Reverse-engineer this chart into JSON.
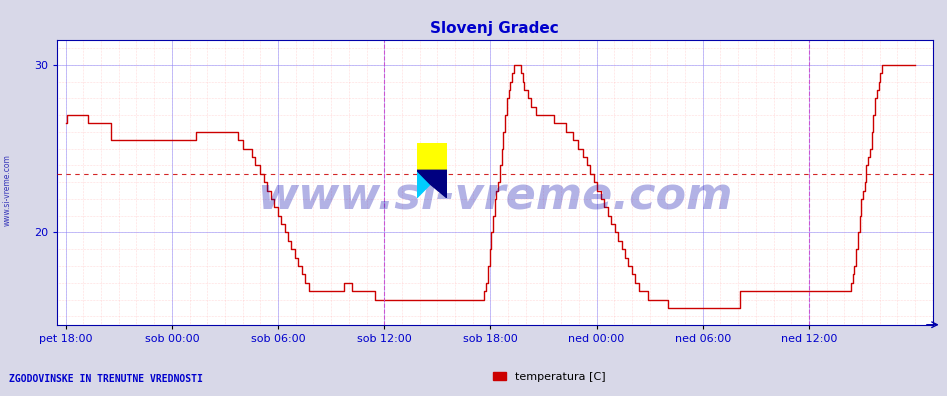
{
  "title": "Slovenj Gradec",
  "title_color": "#0000cc",
  "title_fontsize": 11,
  "ylim": [
    14.5,
    31.5
  ],
  "yticks": [
    20,
    30
  ],
  "background_color": "#d8d8e8",
  "plot_bg_color": "#ffffff",
  "line_color": "#cc0000",
  "line_width": 1.0,
  "grid_color_major": "#8888ff",
  "grid_color_minor": "#ffaaaa",
  "hline_y": 23.5,
  "hline_color": "#cc0000",
  "vline_color": "#cc44cc",
  "xtick_labels": [
    "pet 18:00",
    "sob 00:00",
    "sob 06:00",
    "sob 12:00",
    "sob 18:00",
    "ned 00:00",
    "ned 06:00",
    "ned 12:00"
  ],
  "xtick_color": "#0000cc",
  "ytick_color": "#0000cc",
  "watermark_text": "www.si-vreme.com",
  "watermark_color": "#0000aa",
  "watermark_alpha": 0.3,
  "watermark_fontsize": 32,
  "sidebar_text": "www.si-vreme.com",
  "sidebar_color": "#0000aa",
  "legend_label": "temperatura [C]",
  "legend_color": "#cc0000",
  "footer_text": "ZGODOVINSKE IN TRENUTNE VREDNOSTI",
  "footer_color": "#0000cc",
  "temperature_data": [
    26.5,
    27.0,
    27.0,
    27.0,
    27.0,
    27.0,
    27.0,
    27.0,
    27.0,
    27.0,
    27.0,
    27.0,
    27.0,
    26.5,
    26.5,
    26.5,
    26.5,
    26.5,
    26.5,
    26.5,
    26.5,
    26.5,
    26.5,
    26.5,
    26.5,
    26.5,
    25.5,
    25.5,
    25.5,
    25.5,
    25.5,
    25.5,
    25.5,
    25.5,
    25.5,
    25.5,
    25.5,
    25.5,
    25.5,
    25.5,
    25.5,
    25.5,
    25.5,
    25.5,
    25.5,
    25.5,
    25.5,
    25.5,
    25.5,
    25.5,
    25.5,
    25.5,
    25.5,
    25.5,
    25.5,
    25.5,
    25.5,
    25.5,
    25.5,
    25.5,
    25.5,
    25.5,
    25.5,
    25.5,
    25.5,
    25.5,
    25.5,
    25.5,
    25.5,
    25.5,
    25.5,
    25.5,
    25.5,
    25.5,
    25.5,
    26.0,
    26.0,
    26.0,
    26.0,
    26.0,
    26.0,
    26.0,
    26.0,
    26.0,
    26.0,
    26.0,
    26.0,
    26.0,
    26.0,
    26.0,
    26.0,
    26.0,
    26.0,
    26.0,
    26.0,
    26.0,
    26.0,
    26.0,
    26.0,
    25.5,
    25.5,
    25.5,
    25.0,
    25.0,
    25.0,
    25.0,
    25.0,
    24.5,
    24.5,
    24.0,
    24.0,
    24.0,
    23.5,
    23.5,
    23.0,
    23.0,
    22.5,
    22.5,
    22.0,
    22.0,
    21.5,
    21.5,
    21.0,
    21.0,
    20.5,
    20.5,
    20.0,
    20.0,
    19.5,
    19.5,
    19.0,
    19.0,
    18.5,
    18.5,
    18.0,
    18.0,
    17.5,
    17.5,
    17.0,
    17.0,
    16.5,
    16.5,
    16.5,
    16.5,
    16.5,
    16.5,
    16.5,
    16.5,
    16.5,
    16.5,
    16.5,
    16.5,
    16.5,
    16.5,
    16.5,
    16.5,
    16.5,
    16.5,
    16.5,
    16.5,
    17.0,
    17.0,
    17.0,
    17.0,
    17.0,
    16.5,
    16.5,
    16.5,
    16.5,
    16.5,
    16.5,
    16.5,
    16.5,
    16.5,
    16.5,
    16.5,
    16.5,
    16.5,
    16.0,
    16.0,
    16.0,
    16.0,
    16.0,
    16.0,
    16.0,
    16.0,
    16.0,
    16.0,
    16.0,
    16.0,
    16.0,
    16.0,
    16.0,
    16.0,
    16.0,
    16.0,
    16.0,
    16.0,
    16.0,
    16.0,
    16.0,
    16.0,
    16.0,
    16.0,
    16.0,
    16.0,
    16.0,
    16.0,
    16.0,
    16.0,
    16.0,
    16.0,
    16.0,
    16.0,
    16.0,
    16.0,
    16.0,
    16.0,
    16.0,
    16.0,
    16.0,
    16.0,
    16.0,
    16.0,
    16.0,
    16.0,
    16.0,
    16.0,
    16.0,
    16.0,
    16.0,
    16.0,
    16.0,
    16.0,
    16.0,
    16.0,
    16.0,
    16.0,
    16.0,
    16.0,
    16.0,
    16.5,
    17.0,
    18.0,
    19.0,
    20.0,
    21.0,
    22.0,
    22.5,
    23.0,
    24.0,
    25.0,
    26.0,
    27.0,
    28.0,
    28.5,
    29.0,
    29.5,
    30.0,
    30.0,
    30.0,
    30.0,
    29.5,
    29.0,
    28.5,
    28.5,
    28.0,
    28.0,
    27.5,
    27.5,
    27.5,
    27.0,
    27.0,
    27.0,
    27.0,
    27.0,
    27.0,
    27.0,
    27.0,
    27.0,
    27.0,
    26.5,
    26.5,
    26.5,
    26.5,
    26.5,
    26.5,
    26.5,
    26.0,
    26.0,
    26.0,
    26.0,
    25.5,
    25.5,
    25.5,
    25.0,
    25.0,
    25.0,
    24.5,
    24.5,
    24.0,
    24.0,
    23.5,
    23.5,
    23.0,
    23.0,
    22.5,
    22.5,
    22.0,
    22.0,
    21.5,
    21.5,
    21.0,
    21.0,
    20.5,
    20.5,
    20.0,
    20.0,
    19.5,
    19.5,
    19.0,
    19.0,
    18.5,
    18.5,
    18.0,
    18.0,
    17.5,
    17.5,
    17.0,
    17.0,
    16.5,
    16.5,
    16.5,
    16.5,
    16.5,
    16.0,
    16.0,
    16.0,
    16.0,
    16.0,
    16.0,
    16.0,
    16.0,
    16.0,
    16.0,
    16.0,
    16.0,
    15.5,
    15.5,
    15.5,
    15.5,
    15.5,
    15.5,
    15.5,
    15.5,
    15.5,
    15.5,
    15.5,
    15.5,
    15.5,
    15.5,
    15.5,
    15.5,
    15.5,
    15.5,
    15.5,
    15.5,
    15.5,
    15.5,
    15.5,
    15.5,
    15.5,
    15.5,
    15.5,
    15.5,
    15.5,
    15.5,
    15.5,
    15.5,
    15.5,
    15.5,
    15.5,
    15.5,
    15.5,
    15.5,
    15.5,
    15.5,
    15.5,
    16.5,
    16.5,
    16.5,
    16.5,
    16.5,
    16.5,
    16.5,
    16.5,
    16.5,
    16.5,
    16.5,
    16.5,
    16.5,
    16.5,
    16.5,
    16.5,
    16.5,
    16.5,
    16.5,
    16.5,
    16.5,
    16.5,
    16.5,
    16.5,
    16.5,
    16.5,
    16.5,
    16.5,
    16.5,
    16.5,
    16.5,
    16.5,
    16.5,
    16.5,
    16.5,
    16.5,
    16.5,
    16.5,
    16.5,
    16.5,
    16.5,
    16.5,
    16.5,
    16.5,
    16.5,
    16.5,
    16.5,
    16.5,
    16.5,
    16.5,
    16.5,
    16.5,
    16.5,
    16.5,
    16.5,
    16.5,
    16.5,
    16.5,
    16.5,
    16.5,
    16.5,
    16.5,
    16.5,
    16.5,
    17.0,
    17.5,
    18.0,
    19.0,
    20.0,
    21.0,
    22.0,
    22.5,
    23.0,
    24.0,
    24.5,
    25.0,
    26.0,
    27.0,
    28.0,
    28.5,
    29.0,
    29.5,
    30.0,
    30.0,
    30.0,
    30.0,
    30.0,
    30.0,
    30.0,
    30.0,
    30.0,
    30.0,
    30.0,
    30.0,
    30.0,
    30.0,
    30.0,
    30.0,
    30.0,
    30.0,
    30.0,
    30.0
  ]
}
